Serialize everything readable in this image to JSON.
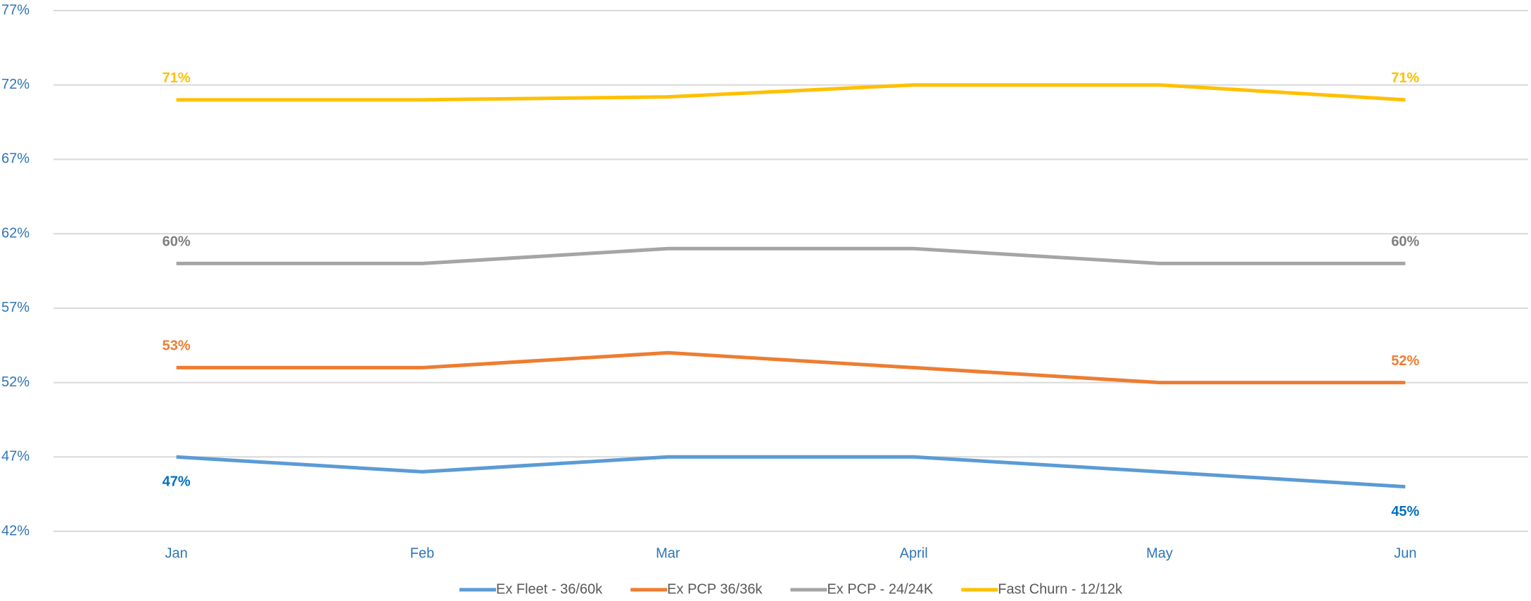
{
  "chart_data": {
    "type": "line",
    "categories": [
      "Jan",
      "Feb",
      "Mar",
      "April",
      "May",
      "Jun"
    ],
    "series": [
      {
        "name": "Ex Fleet - 36/60k",
        "color": "#5b9bd5",
        "label_color": "#0070c0",
        "values": [
          47,
          46,
          47,
          47,
          46,
          45
        ],
        "value_labels": [
          "47%",
          null,
          null,
          null,
          null,
          "45%"
        ]
      },
      {
        "name": "Ex PCP 36/36k",
        "color": "#ed7d31",
        "label_color": "#ed7d31",
        "values": [
          53,
          53,
          54,
          53,
          52,
          52
        ],
        "value_labels": [
          "53%",
          null,
          null,
          null,
          null,
          "52%"
        ]
      },
      {
        "name": "Ex PCP - 24/24K",
        "color": "#a5a5a5",
        "label_color": "#7f7f7f",
        "values": [
          60,
          60,
          61,
          61,
          60,
          60
        ],
        "value_labels": [
          "60%",
          null,
          null,
          null,
          null,
          "60%"
        ]
      },
      {
        "name": "Fast Churn - 12/12k",
        "color": "#ffc000",
        "label_color": "#ffc000",
        "values": [
          71,
          71,
          71.2,
          72,
          72,
          71
        ],
        "value_labels": [
          "71%",
          null,
          null,
          null,
          null,
          "71%"
        ]
      }
    ],
    "ylim": [
      42,
      77
    ],
    "yticks": [
      {
        "value": 42,
        "label": "42%"
      },
      {
        "value": 47,
        "label": "47%"
      },
      {
        "value": 52,
        "label": "52%"
      },
      {
        "value": 57,
        "label": "57%"
      },
      {
        "value": 62,
        "label": "62%"
      },
      {
        "value": 67,
        "label": "67%"
      },
      {
        "value": 72,
        "label": "72%"
      },
      {
        "value": 77,
        "label": "77%"
      }
    ],
    "grid": true,
    "legend": "bottom"
  }
}
